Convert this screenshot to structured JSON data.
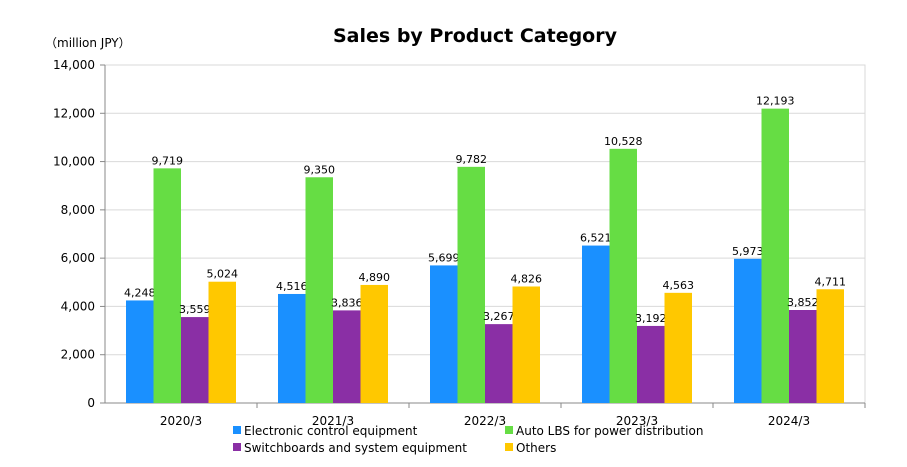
{
  "chart_data": {
    "type": "bar",
    "title": "Sales by Product Category",
    "unit_label": "（million JPY）",
    "categories": [
      "2020/3",
      "2021/3",
      "2022/3",
      "2023/3",
      "2024/3"
    ],
    "ylim": [
      0,
      14000
    ],
    "yticks": [
      0,
      2000,
      4000,
      6000,
      8000,
      10000,
      12000,
      14000
    ],
    "ytick_labels": [
      "0",
      "2,000",
      "4,000",
      "6,000",
      "8,000",
      "10,000",
      "12,000",
      "14,000"
    ],
    "grid": true,
    "legend_position": "bottom",
    "series": [
      {
        "name": "Electronic control equipment",
        "color": "#1a90ff",
        "values": [
          4248,
          4516,
          5699,
          6521,
          5973
        ],
        "labels": [
          "4,248",
          "4,516",
          "5,699",
          "6,521",
          "5,973"
        ]
      },
      {
        "name": "Auto LBS for power distribution",
        "color": "#66dd44",
        "values": [
          9719,
          9350,
          9782,
          10528,
          12193
        ],
        "labels": [
          "9,719",
          "9,350",
          "9,782",
          "10,528",
          "12,193"
        ]
      },
      {
        "name": "Switchboards and system equipment",
        "color": "#8a2fa5",
        "values": [
          3559,
          3836,
          3267,
          3192,
          3852
        ],
        "labels": [
          "3,559",
          "3,836",
          "3,267",
          "3,192",
          "3,852"
        ]
      },
      {
        "name": "Others",
        "color": "#ffc800",
        "values": [
          5024,
          4890,
          4826,
          4563,
          4711
        ],
        "labels": [
          "5,024",
          "4,890",
          "4,826",
          "4,563",
          "4,711"
        ]
      }
    ]
  }
}
